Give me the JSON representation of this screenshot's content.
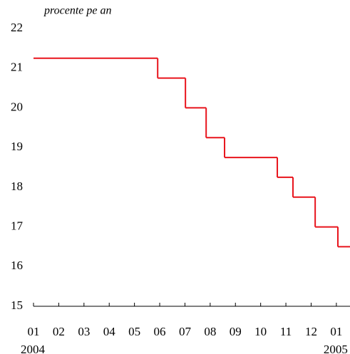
{
  "chart_data": {
    "type": "step",
    "title": "procente pe an",
    "x": [
      0,
      4.92,
      6.02,
      6.84,
      7.57,
      9.66,
      10.28,
      11.16,
      12.06
    ],
    "values": [
      21.25,
      20.75,
      20,
      19.25,
      18.75,
      18.25,
      17.75,
      17,
      16.5
    ],
    "color": "#e8141c",
    "xlim": [
      0,
      12.54
    ],
    "xticks": [
      {
        "value": 0,
        "label": "01"
      },
      {
        "value": 1,
        "label": "02"
      },
      {
        "value": 2,
        "label": "03"
      },
      {
        "value": 3,
        "label": "04"
      },
      {
        "value": 4,
        "label": "05"
      },
      {
        "value": 5,
        "label": "06"
      },
      {
        "value": 6,
        "label": "07"
      },
      {
        "value": 7,
        "label": "08"
      },
      {
        "value": 8,
        "label": "09"
      },
      {
        "value": 9,
        "label": "10"
      },
      {
        "value": 10,
        "label": "11"
      },
      {
        "value": 11,
        "label": "12"
      },
      {
        "value": 12,
        "label": "01"
      }
    ],
    "year_labels": [
      {
        "value": 0,
        "label": "2004"
      },
      {
        "value": 12,
        "label": "2005"
      }
    ],
    "ylim": [
      15,
      22
    ],
    "yticks": [
      15,
      16,
      17,
      18,
      19,
      20,
      21,
      22
    ]
  }
}
